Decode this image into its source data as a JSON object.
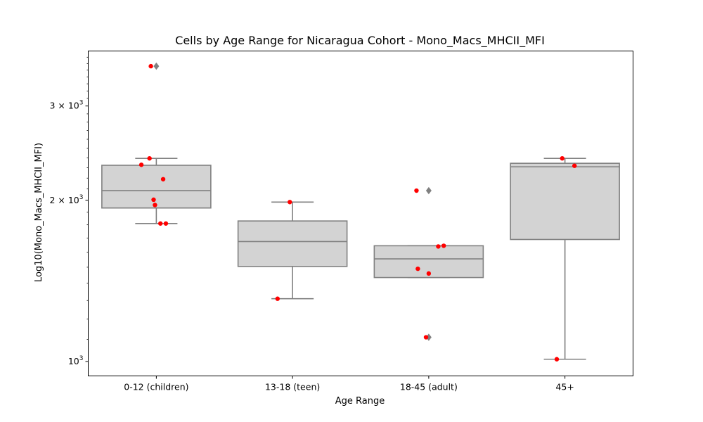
{
  "chart_data": {
    "type": "box",
    "title": "Cells by Age Range for Nicaragua Cohort - Mono_Macs_MHCII_MFI",
    "xlabel": "Age Range",
    "ylabel": "Log10(Mono_Macs_MHCII_MFI)",
    "y_scale": "log",
    "ylim": [
      940,
      3800
    ],
    "y_ticks": [
      {
        "value": 1000,
        "base": "10",
        "exp": "3"
      },
      {
        "value": 2000,
        "coef": "2",
        "base": "10",
        "exp": "3"
      },
      {
        "value": 3000,
        "coef": "3",
        "base": "10",
        "exp": "3"
      }
    ],
    "categories": [
      "0-12 (children)",
      "13-18 (teen)",
      "18-45 (adult)",
      "45+"
    ],
    "boxes": [
      {
        "whisker_low": 1810,
        "q1": 1935,
        "median": 2085,
        "q3": 2325,
        "whisker_high": 2395,
        "fliers": [
          3560
        ]
      },
      {
        "whisker_low": 1310,
        "q1": 1505,
        "median": 1675,
        "q3": 1830,
        "whisker_high": 1985,
        "fliers": []
      },
      {
        "whisker_low": 1435,
        "q1": 1435,
        "median": 1555,
        "q3": 1645,
        "whisker_high": 1645,
        "fliers": [
          2085,
          1110
        ]
      },
      {
        "whisker_low": 1010,
        "q1": 1690,
        "median": 2310,
        "q3": 2345,
        "whisker_high": 2395,
        "fliers": []
      }
    ],
    "points": [
      {
        "cat": 0,
        "offset": -0.04,
        "value": 3560
      },
      {
        "cat": 0,
        "offset": -0.05,
        "value": 2395
      },
      {
        "cat": 0,
        "offset": -0.11,
        "value": 2330
      },
      {
        "cat": 0,
        "offset": 0.05,
        "value": 2190
      },
      {
        "cat": 0,
        "offset": -0.02,
        "value": 2005
      },
      {
        "cat": 0,
        "offset": -0.01,
        "value": 1960
      },
      {
        "cat": 0,
        "offset": 0.03,
        "value": 1810
      },
      {
        "cat": 0,
        "offset": 0.07,
        "value": 1810
      },
      {
        "cat": 1,
        "offset": -0.02,
        "value": 1985
      },
      {
        "cat": 1,
        "offset": -0.11,
        "value": 1310
      },
      {
        "cat": 2,
        "offset": -0.09,
        "value": 2085
      },
      {
        "cat": 2,
        "offset": 0.07,
        "value": 1640
      },
      {
        "cat": 2,
        "offset": 0.11,
        "value": 1645
      },
      {
        "cat": 2,
        "offset": -0.08,
        "value": 1490
      },
      {
        "cat": 2,
        "offset": 0.0,
        "value": 1460
      },
      {
        "cat": 2,
        "offset": -0.02,
        "value": 1110
      },
      {
        "cat": 3,
        "offset": -0.02,
        "value": 2395
      },
      {
        "cat": 3,
        "offset": 0.07,
        "value": 2320
      },
      {
        "cat": 3,
        "offset": -0.06,
        "value": 1010
      }
    ],
    "colors": {
      "box_fill": "#d3d3d3",
      "box_edge": "#808080",
      "point": "#ff0000",
      "flier": "#808080"
    },
    "grid": false,
    "legend": "none"
  }
}
